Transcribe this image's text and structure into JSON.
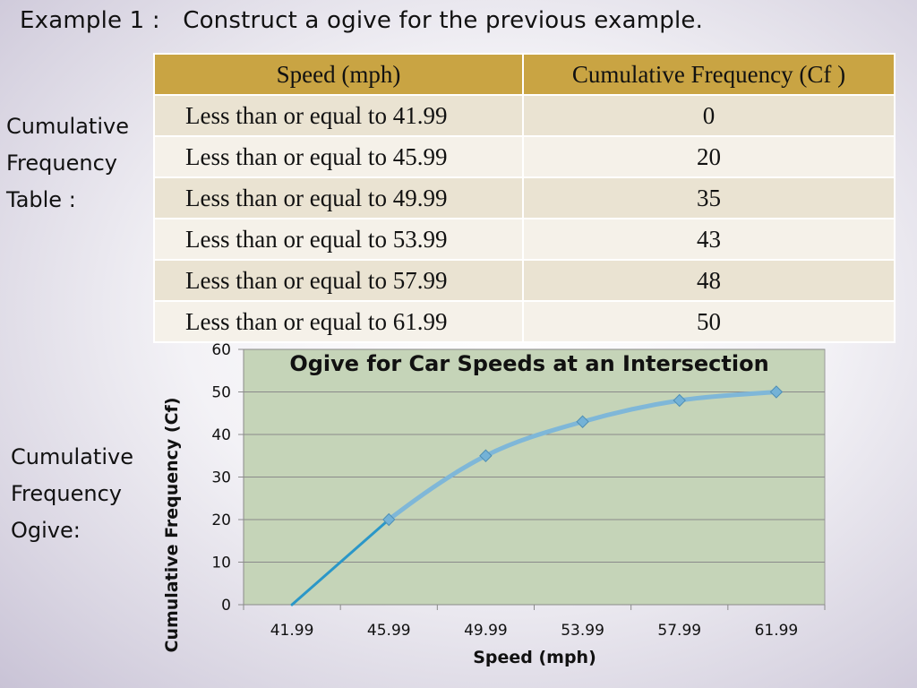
{
  "slide": {
    "title": "Example 1 :   Construct a ogive for the previous example."
  },
  "labels": {
    "table_label": [
      "Cumulative",
      "Frequency",
      "Table :"
    ],
    "ogive_label": [
      "Cumulative",
      "Frequency",
      "Ogive:"
    ]
  },
  "table": {
    "headers": [
      "Speed (mph)",
      "Cumulative Frequency (Cf )"
    ],
    "rows": [
      [
        "Less than or equal to 41.99",
        "0"
      ],
      [
        "Less than or equal to 45.99",
        "20"
      ],
      [
        "Less than or equal to 49.99",
        "35"
      ],
      [
        "Less than or equal to 53.99",
        "43"
      ],
      [
        "Less than or equal to 57.99",
        "48"
      ],
      [
        "Less than or equal to 61.99",
        "50"
      ]
    ]
  },
  "colors": {
    "header_bg": "#c9a443",
    "plot_bg": "#c5d4b8",
    "line": "#7fb7d8",
    "line_dark": "#2b97c8",
    "marker": "#74b2d6"
  },
  "chart_data": {
    "type": "line",
    "title": "Ogive for Car Speeds at an Intersection",
    "xlabel": "Speed (mph)",
    "ylabel": "Cumulative Frequency (Cf)",
    "categories": [
      "41.99",
      "45.99",
      "49.99",
      "53.99",
      "57.99",
      "61.99"
    ],
    "series": [
      {
        "name": "Cumulative Frequency",
        "values": [
          0,
          20,
          35,
          43,
          48,
          50
        ]
      }
    ],
    "ylim": [
      0,
      60
    ],
    "yticks": [
      0,
      10,
      20,
      30,
      40,
      50,
      60
    ],
    "grid": true,
    "legend": "none"
  }
}
